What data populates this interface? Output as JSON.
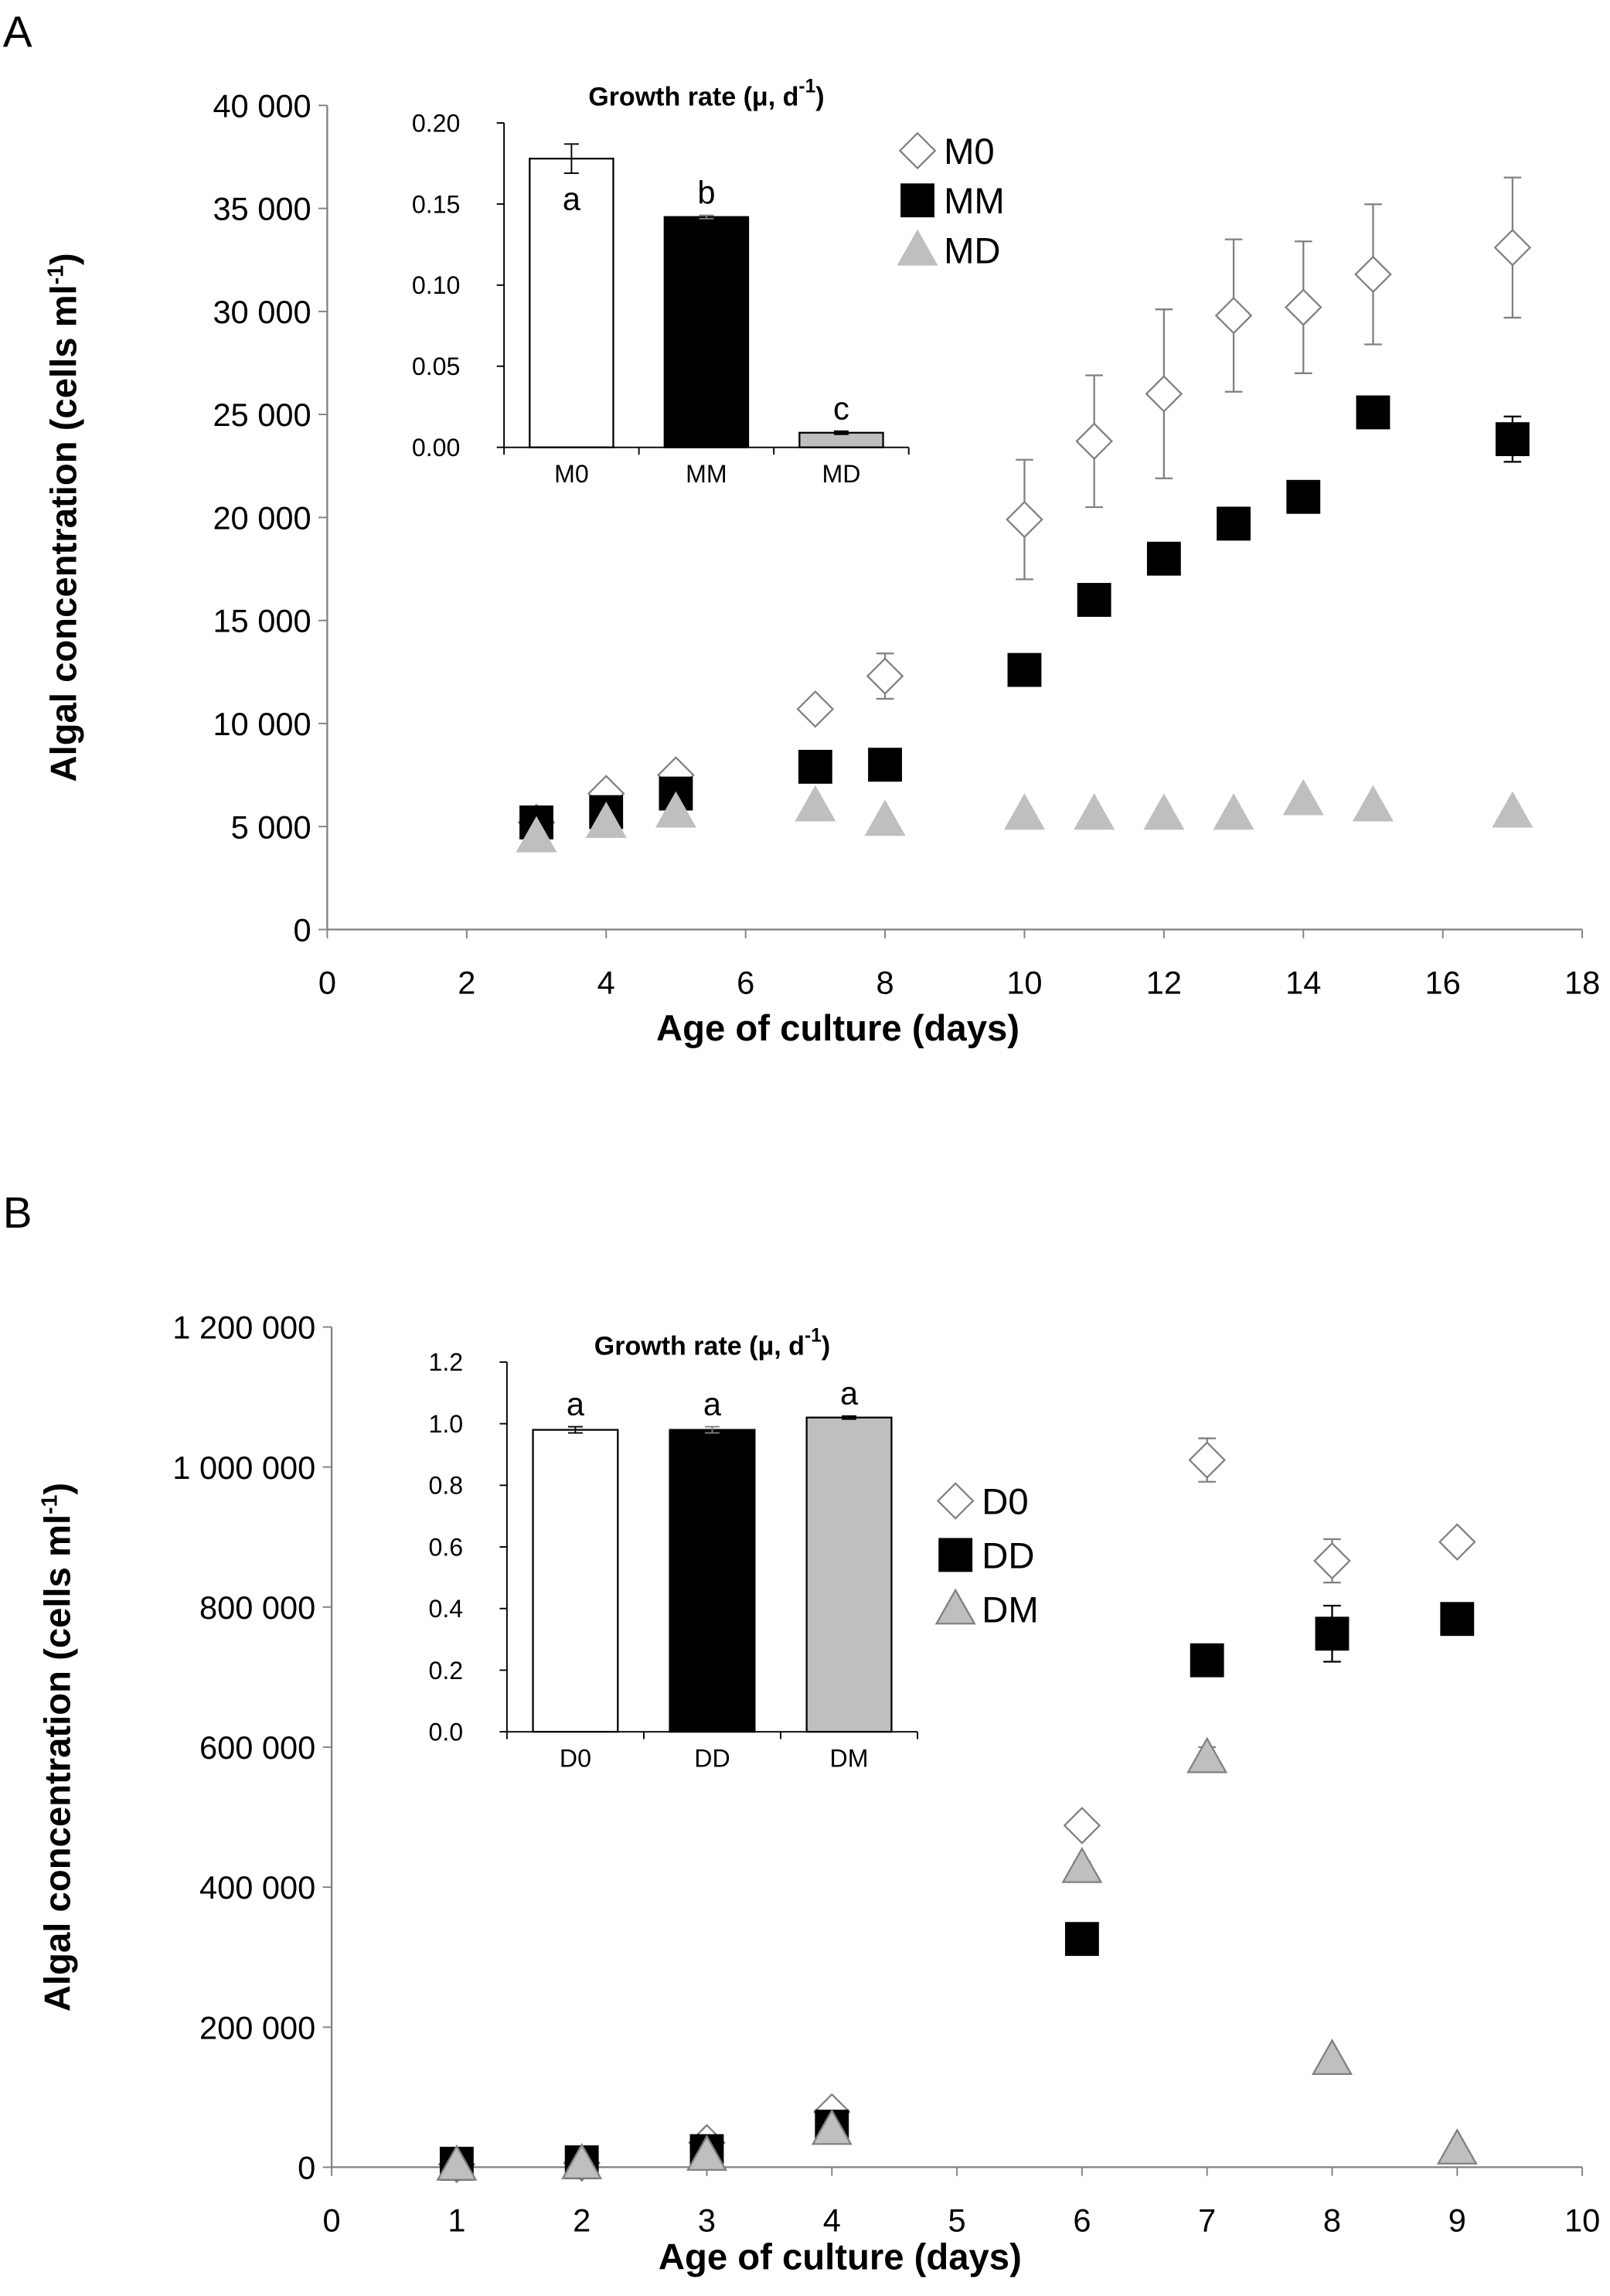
{
  "chart_data": [
    {
      "type": "scatter",
      "panel_label": "A",
      "xlabel": "Age of culture (days)",
      "ylabel": "Algal concentration (cells ml",
      "ylabel_sup": "-1",
      "ylabel_end": ")",
      "x": [
        3,
        4,
        5,
        7,
        8,
        10,
        11,
        12,
        13,
        14,
        15,
        17
      ],
      "xlim": [
        0,
        18
      ],
      "xticks": [
        0,
        2,
        4,
        6,
        8,
        10,
        12,
        14,
        16,
        18
      ],
      "ylim": [
        0,
        40000
      ],
      "yticks": [
        0,
        {
          "value": 5000,
          "label": "5 000"
        },
        {
          "value": 10000,
          "label": "10 000"
        },
        {
          "value": 15000,
          "label": "15 000"
        },
        {
          "value": 20000,
          "label": "20 000"
        },
        {
          "value": 25000,
          "label": "25 000"
        },
        {
          "value": 30000,
          "label": "30 000"
        },
        {
          "value": 35000,
          "label": "35 000"
        },
        {
          "value": 40000,
          "label": "40 000"
        }
      ],
      "series": [
        {
          "name": "M0",
          "marker": "diamond",
          "color": "#ffffff",
          "edgecolor": "#808080",
          "values": [
            5200,
            6600,
            7500,
            10700,
            12300,
            19900,
            23700,
            26000,
            29800,
            30200,
            31800,
            33100
          ],
          "errors": [
            200,
            300,
            300,
            300,
            1100,
            2900,
            3200,
            4100,
            3700,
            3200,
            3400,
            3400
          ]
        },
        {
          "name": "MM",
          "marker": "square",
          "color": "#000000",
          "edgecolor": "#000000",
          "values": [
            5200,
            5700,
            6600,
            7900,
            8000,
            12600,
            16000,
            18000,
            19700,
            21000,
            25100,
            23800
          ],
          "errors": [
            200,
            200,
            200,
            200,
            200,
            200,
            300,
            200,
            200,
            200,
            300,
            1100
          ]
        },
        {
          "name": "MD",
          "marker": "triangle",
          "color": "#bfbfbf",
          "edgecolor": "#bfbfbf",
          "values": [
            4500,
            5200,
            5700,
            6000,
            5300,
            5600,
            5600,
            5600,
            5600,
            6300,
            6000,
            5700
          ],
          "errors": [
            100,
            100,
            100,
            100,
            100,
            100,
            100,
            100,
            100,
            100,
            100,
            100
          ]
        }
      ],
      "inset": {
        "type": "bar",
        "title": "Growth rate (μ, d",
        "title_sup": "-1",
        "title_end": ")",
        "categories": [
          "M0",
          "MM",
          "MD"
        ],
        "values": [
          0.178,
          0.142,
          0.009
        ],
        "errors": [
          0.009,
          0.001,
          0.001
        ],
        "colors": [
          "#ffffff",
          "#000000",
          "#bfbfbf"
        ],
        "letters": [
          "a",
          "b",
          "c"
        ],
        "ylim": [
          0,
          0.2
        ],
        "yticks": [
          {
            "value": 0,
            "label": "0.00"
          },
          0.05,
          {
            "value": 0.1,
            "label": "0.10"
          },
          0.15,
          {
            "value": 0.2,
            "label": "0.20"
          }
        ]
      }
    },
    {
      "type": "scatter",
      "panel_label": "B",
      "xlabel": "Age of culture (days)",
      "ylabel": "Algal concentration (cells ml",
      "ylabel_sup": "-1",
      "ylabel_end": ")",
      "x": [
        1,
        2,
        3,
        4,
        6,
        7,
        8,
        9
      ],
      "xlim": [
        0,
        10
      ],
      "xticks": [
        0,
        1,
        2,
        3,
        4,
        5,
        6,
        7,
        8,
        9,
        10
      ],
      "ylim": [
        0,
        1200000
      ],
      "yticks": [
        0,
        {
          "value": 200000,
          "label": "200 000"
        },
        {
          "value": 400000,
          "label": "400 000"
        },
        {
          "value": 600000,
          "label": "600 000"
        },
        {
          "value": 800000,
          "label": "800 000"
        },
        {
          "value": 1000000,
          "label": "1 000 000"
        },
        {
          "value": 1200000,
          "label": "1 200 000"
        }
      ],
      "series": [
        {
          "name": "D0",
          "marker": "diamond",
          "color": "#ffffff",
          "edgecolor": "#808080",
          "values": [
            4000,
            6000,
            35000,
            79000,
            488000,
            1010000,
            866000,
            893000
          ],
          "errors": [
            2000,
            2000,
            5000,
            8000,
            10000,
            31000,
            31000,
            10000
          ]
        },
        {
          "name": "DD",
          "marker": "square",
          "color": "#000000",
          "edgecolor": "#000000",
          "values": [
            5000,
            7000,
            23000,
            58000,
            326000,
            724000,
            762000,
            783000
          ],
          "errors": [
            2000,
            2000,
            3000,
            5000,
            5000,
            10000,
            40000,
            8000
          ]
        },
        {
          "name": "DM",
          "marker": "triangle",
          "color": "#bfbfbf",
          "edgecolor": "#808080",
          "values": [
            3000,
            5000,
            17000,
            54000,
            428000,
            585000,
            154000,
            26000
          ],
          "errors": [
            1000,
            1000,
            3000,
            5000,
            8000,
            15000,
            5000,
            3000
          ]
        }
      ],
      "inset": {
        "type": "bar",
        "title": "Growth rate (μ, d",
        "title_sup": "-1",
        "title_end": ")",
        "categories": [
          "D0",
          "DD",
          "DM"
        ],
        "values": [
          0.98,
          0.98,
          1.02
        ],
        "errors": [
          0.01,
          0.01,
          0.005
        ],
        "colors": [
          "#ffffff",
          "#000000",
          "#bfbfbf"
        ],
        "letters": [
          "a",
          "a",
          "a"
        ],
        "ylim": [
          0,
          1.2
        ],
        "yticks": [
          {
            "value": 0,
            "label": "0.0"
          },
          0.2,
          0.4,
          0.6,
          0.8,
          {
            "value": 1,
            "label": "1.0"
          },
          1.2
        ]
      }
    }
  ]
}
